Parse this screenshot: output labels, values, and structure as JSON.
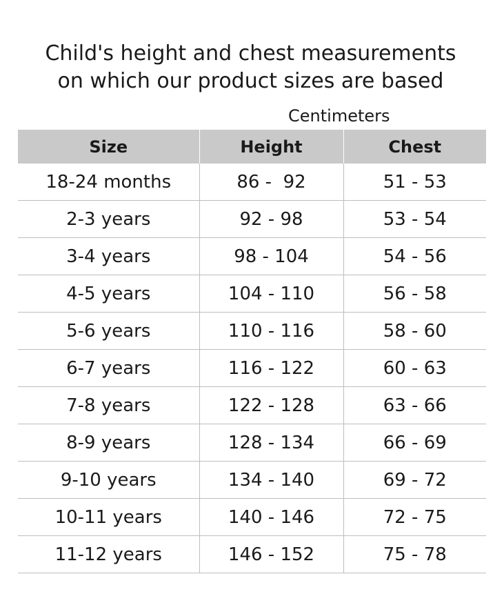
{
  "title": {
    "line1": "Child's height and chest measurements",
    "line2": "on which our product sizes are based"
  },
  "unit_label": "Centimeters",
  "colors": {
    "header_bg": "#c9c9c9",
    "row_divider": "#bdbdbd",
    "text": "#1a1a1a"
  },
  "table": {
    "headers": [
      "Size",
      "Height",
      "Chest"
    ],
    "rows": [
      [
        "18-24 months",
        "86 -  92",
        "51 - 53"
      ],
      [
        "2-3 years",
        "92 - 98",
        "53 - 54"
      ],
      [
        "3-4 years",
        "98 - 104",
        "54 - 56"
      ],
      [
        "4-5 years",
        "104 - 110",
        "56 - 58"
      ],
      [
        "5-6 years",
        "110 - 116",
        "58 - 60"
      ],
      [
        "6-7 years",
        "116 - 122",
        "60 - 63"
      ],
      [
        "7-8 years",
        "122 - 128",
        "63 - 66"
      ],
      [
        "8-9 years",
        "128 - 134",
        "66 - 69"
      ],
      [
        "9-10 years",
        "134 - 140",
        "69 - 72"
      ],
      [
        "10-11 years",
        "140 - 146",
        "72 - 75"
      ],
      [
        "11-12 years",
        "146 - 152",
        "75 - 78"
      ]
    ]
  }
}
